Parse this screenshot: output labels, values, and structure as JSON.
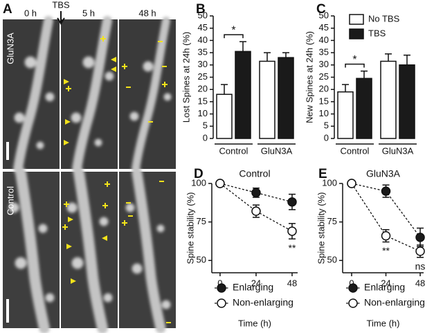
{
  "panel_a": {
    "label": "A",
    "stimulus": "TBS",
    "columns": [
      "0 h",
      "5 h",
      "48 h"
    ],
    "rows": [
      "GluN3A",
      "Control"
    ]
  },
  "chart_data": [
    {
      "type": "bar",
      "label": "B",
      "ylabel": "Lost Spines at 24h (%)",
      "categories": [
        "Control",
        "GluN3A"
      ],
      "series": [
        {
          "color": "#ffffff",
          "values": [
            18,
            31.5
          ],
          "errors": [
            4,
            3.5
          ]
        },
        {
          "color": "#1a1a1a",
          "values": [
            35.5,
            33
          ],
          "errors": [
            4,
            2
          ]
        }
      ],
      "ylim": [
        0,
        50
      ],
      "yticks": [
        0,
        5,
        10,
        15,
        20,
        25,
        30,
        35,
        40,
        45,
        50
      ],
      "annotations": [
        {
          "text": "*",
          "category": 0
        }
      ]
    },
    {
      "type": "bar",
      "label": "C",
      "ylabel": "New Spines at 24h (%)",
      "categories": [
        "Control",
        "GluN3A"
      ],
      "series": [
        {
          "name": "No TBS",
          "color": "#ffffff",
          "values": [
            19,
            31.5
          ],
          "errors": [
            3,
            3
          ]
        },
        {
          "name": "TBS",
          "color": "#1a1a1a",
          "values": [
            24.5,
            30
          ],
          "errors": [
            3,
            4
          ]
        }
      ],
      "ylim": [
        0,
        50
      ],
      "yticks": [
        0,
        5,
        10,
        15,
        20,
        25,
        30,
        35,
        40,
        45,
        50
      ],
      "annotations": [
        {
          "text": "*",
          "category": 0
        }
      ]
    },
    {
      "type": "line",
      "label": "D",
      "title": "Control",
      "xlabel": "Time (h)",
      "ylabel": "Spine stability (%)",
      "x": [
        0,
        24,
        48
      ],
      "series": [
        {
          "name": "Enlarging",
          "color": "#1a1a1a",
          "values": [
            100,
            94,
            88
          ],
          "errors": [
            0,
            3,
            5
          ]
        },
        {
          "name": "Non-enlarging",
          "color": "#ffffff",
          "values": [
            100,
            82,
            69
          ],
          "errors": [
            0,
            4,
            5
          ]
        }
      ],
      "xlim": [
        -5.5,
        51.7
      ],
      "xticks": [
        0,
        24,
        48
      ],
      "ylim": [
        42,
        100
      ],
      "yticks": [
        50,
        75,
        100
      ],
      "annotations": [
        {
          "text": "**",
          "x": 48
        }
      ]
    },
    {
      "type": "line",
      "label": "E",
      "title": "GluN3A",
      "xlabel": "Time (h)",
      "ylabel": "Spine stability (%)",
      "x": [
        0,
        24,
        48
      ],
      "series": [
        {
          "name": "Enlarging",
          "color": "#1a1a1a",
          "values": [
            100,
            95,
            65
          ],
          "errors": [
            0,
            4,
            6
          ]
        },
        {
          "name": "Non-enlarging",
          "color": "#ffffff",
          "values": [
            100,
            66,
            56
          ],
          "errors": [
            0,
            4,
            4
          ]
        }
      ],
      "xlim": [
        -6.3,
        50.4
      ],
      "xticks": [
        0,
        24,
        48
      ],
      "ylim": [
        42,
        100
      ],
      "yticks": [
        50,
        75,
        100
      ],
      "annotations": [
        {
          "text": "**",
          "x": 24
        },
        {
          "text": "ns",
          "x": 48
        }
      ]
    }
  ]
}
